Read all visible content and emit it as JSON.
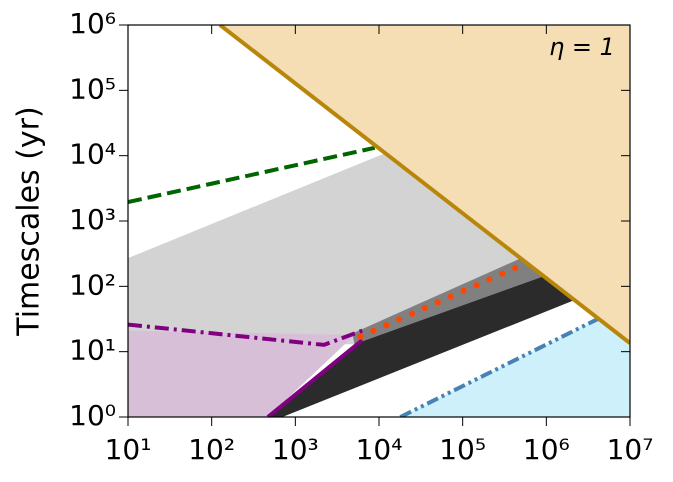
{
  "chart_data": {
    "type": "area",
    "annotation": "η = 1",
    "y_label": "Timescales (yr)",
    "xscale": "log",
    "yscale": "log",
    "xlim": [
      10,
      10000000
    ],
    "ylim": [
      1,
      1000000
    ],
    "xticks": [
      {
        "value": 10,
        "label": "10¹"
      },
      {
        "value": 100,
        "label": "10²"
      },
      {
        "value": 1000,
        "label": "10³"
      },
      {
        "value": 10000,
        "label": "10⁴"
      },
      {
        "value": 100000,
        "label": "10⁵"
      },
      {
        "value": 1000000,
        "label": "10⁶"
      },
      {
        "value": 10000000,
        "label": "10⁷"
      }
    ],
    "yticks": [
      {
        "value": 1,
        "label": "10⁰"
      },
      {
        "value": 10,
        "label": "10¹"
      },
      {
        "value": 100,
        "label": "10²"
      },
      {
        "value": 1000,
        "label": "10³"
      },
      {
        "value": 10000,
        "label": "10⁴"
      },
      {
        "value": 100000,
        "label": "10⁵"
      },
      {
        "value": 1000000,
        "label": "10⁶"
      }
    ],
    "series": [
      {
        "kind": "fill",
        "color": "#d3d3d3",
        "x": [
          10,
          12000,
          1000000,
          5100,
          10
        ],
        "values": [
          270,
          11000,
          150,
          13,
          13
        ]
      },
      {
        "kind": "fill",
        "color": "#808080",
        "x": [
          4800,
          600000,
          1100000,
          5100
        ],
        "values": [
          19,
          300,
          120,
          13
        ]
      },
      {
        "kind": "fill",
        "color": "#2b2b2b",
        "x": [
          470,
          700,
          2200000,
          1200000,
          5100
        ],
        "values": [
          1,
          1,
          62,
          160,
          13
        ]
      },
      {
        "kind": "fill",
        "color": "#d8bfd8",
        "x": [
          10,
          5100,
          470,
          10
        ],
        "values": [
          21,
          18,
          1,
          1
        ]
      },
      {
        "kind": "fill",
        "color": "#cdf0fb",
        "x": [
          18000,
          4400000,
          10000000,
          10000000
        ],
        "values": [
          1,
          33,
          13.5,
          1
        ]
      },
      {
        "kind": "fill",
        "color": "#f5deb3",
        "x": [
          126,
          10000000,
          10000000
        ],
        "values": [
          1000000,
          13.5,
          1000000
        ]
      },
      {
        "kind": "line",
        "dash": "dashdotdot",
        "color": "#4682b4",
        "x": [
          18000,
          4400000
        ],
        "values": [
          1,
          33
        ]
      },
      {
        "kind": "line",
        "dash": "dashed",
        "color": "#006400",
        "x": [
          10,
          8900
        ],
        "values": [
          1950,
          13200
        ]
      },
      {
        "kind": "line",
        "dash": "dashdot",
        "color": "#800080",
        "x": [
          10,
          2200,
          6300
        ],
        "values": [
          26,
          12.7,
          21
        ]
      },
      {
        "kind": "line",
        "dash": "solid",
        "color": "#800080",
        "x": [
          470,
          6300
        ],
        "values": [
          1,
          15
        ]
      },
      {
        "kind": "line",
        "dash": "dotted",
        "color": "#ff4500",
        "x": [
          6000,
          500000
        ],
        "values": [
          17,
          210
        ]
      },
      {
        "kind": "line",
        "dash": "solid",
        "color": "#b8860b",
        "x": [
          126,
          10000000
        ],
        "values": [
          1000000,
          13.5
        ]
      }
    ]
  }
}
